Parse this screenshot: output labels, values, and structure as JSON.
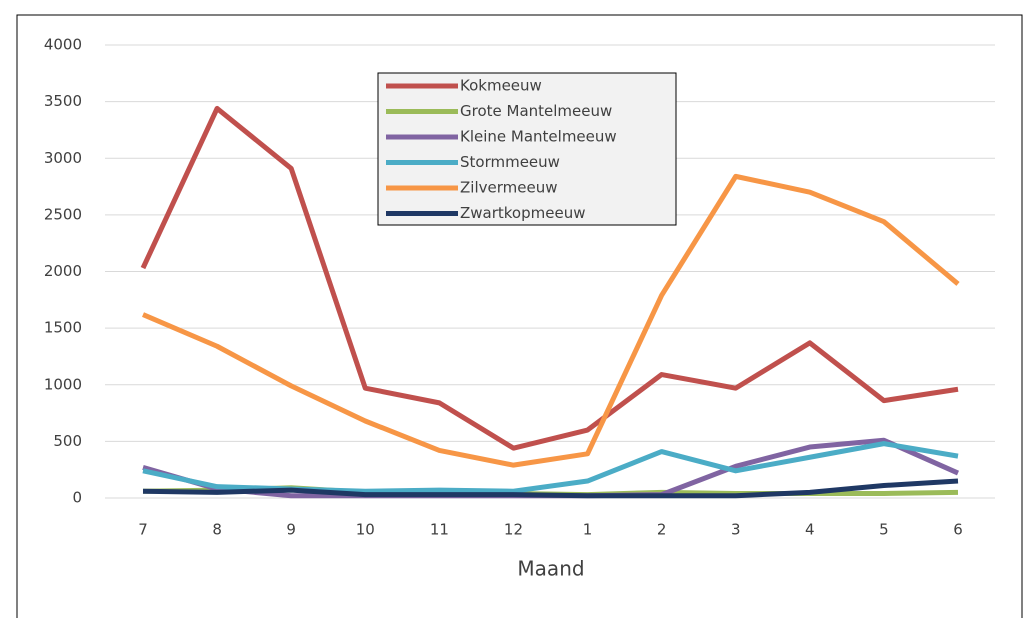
{
  "chart_data": {
    "type": "line",
    "x_label": "Maand",
    "categories": [
      "7",
      "8",
      "9",
      "10",
      "11",
      "12",
      "1",
      "2",
      "3",
      "4",
      "5",
      "6"
    ],
    "series": [
      {
        "name": "Kokmeeuw",
        "color": "#c0504d",
        "values": [
          2030,
          3440,
          2910,
          970,
          840,
          440,
          600,
          1090,
          970,
          1370,
          860,
          960
        ]
      },
      {
        "name": "Grote Mantelmeeuw",
        "color": "#9bbb59",
        "values": [
          60,
          70,
          90,
          50,
          50,
          40,
          30,
          50,
          40,
          40,
          40,
          50
        ]
      },
      {
        "name": "Kleine Mantelmeeuw",
        "color": "#8064a2",
        "values": [
          270,
          80,
          20,
          20,
          20,
          20,
          20,
          30,
          280,
          450,
          510,
          220
        ]
      },
      {
        "name": "Stormmeeuw",
        "color": "#4bacc6",
        "values": [
          240,
          100,
          80,
          60,
          70,
          60,
          150,
          410,
          240,
          360,
          480,
          370
        ]
      },
      {
        "name": "Zilvermeeuw",
        "color": "#f79646",
        "values": [
          1620,
          1340,
          990,
          680,
          420,
          290,
          390,
          1790,
          2840,
          2700,
          2440,
          1890
        ]
      },
      {
        "name": "Zwartkopmeeuw",
        "color": "#1f3864",
        "values": [
          60,
          50,
          70,
          30,
          30,
          30,
          20,
          20,
          20,
          50,
          110,
          150
        ]
      }
    ],
    "ylim": [
      0,
      4000
    ],
    "yticks": [
      0,
      500,
      1000,
      1500,
      2000,
      2500,
      3000,
      3500,
      4000
    ],
    "grid": true,
    "legend": "top-center"
  }
}
